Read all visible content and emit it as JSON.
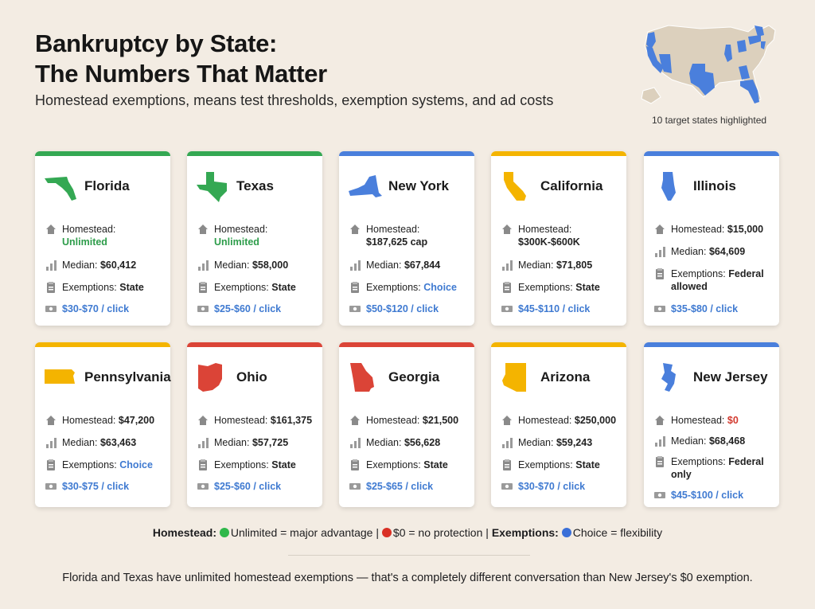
{
  "header": {
    "title_line1": "Bankruptcy by State:",
    "title_line2": "The Numbers That Matter",
    "subtitle": "Homestead exemptions, means test thresholds, exemption systems, and ad costs"
  },
  "map": {
    "caption": "10 target states highlighted"
  },
  "colors": {
    "green": "#34a853",
    "blue": "#4a7fdc",
    "yellow": "#f4b400",
    "red": "#db4437"
  },
  "labels": {
    "homestead": "Homestead:",
    "median": "Median:",
    "exemptions": "Exemptions:"
  },
  "cards": [
    {
      "state": "Florida",
      "color": "green",
      "homestead": "Unlimited",
      "median": "$60,412",
      "exemptions": "State",
      "cost": "$30-$70 / click"
    },
    {
      "state": "Texas",
      "color": "green",
      "homestead": "Unlimited",
      "median": "$58,000",
      "exemptions": "State",
      "cost": "$25-$60 / click"
    },
    {
      "state": "New York",
      "color": "blue",
      "homestead": "$187,625 cap",
      "median": "$67,844",
      "exemptions": "Choice",
      "cost": "$50-$120 / click"
    },
    {
      "state": "California",
      "color": "yellow",
      "homestead": "$300K-$600K",
      "median": "$71,805",
      "exemptions": "State",
      "cost": "$45-$110 / click"
    },
    {
      "state": "Illinois",
      "color": "blue",
      "homestead": "$15,000",
      "median": "$64,609",
      "exemptions": "Federal allowed",
      "cost": "$35-$80 / click"
    },
    {
      "state": "Pennsylvania",
      "color": "yellow",
      "homestead": "$47,200",
      "median": "$63,463",
      "exemptions": "Choice",
      "cost": "$30-$75 / click"
    },
    {
      "state": "Ohio",
      "color": "red",
      "homestead": "$161,375",
      "median": "$57,725",
      "exemptions": "State",
      "cost": "$25-$60 / click"
    },
    {
      "state": "Georgia",
      "color": "red",
      "homestead": "$21,500",
      "median": "$56,628",
      "exemptions": "State",
      "cost": "$25-$65 / click"
    },
    {
      "state": "Arizona",
      "color": "yellow",
      "homestead": "$250,000",
      "median": "$59,243",
      "exemptions": "State",
      "cost": "$30-$70 / click"
    },
    {
      "state": "New Jersey",
      "color": "blue",
      "homestead": "$0",
      "median": "$68,468",
      "exemptions": "Federal only",
      "cost": "$45-$100 / click"
    }
  ],
  "legend": {
    "homestead_label": "Homestead:",
    "unlimited_text": "Unlimited = major advantage",
    "zero_text": "$0 = no protection",
    "exemptions_label": "Exemptions:",
    "choice_text": "Choice = flexibility"
  },
  "footer": "Florida and Texas have unlimited homestead exemptions — that's a completely different conversation than New Jersey's $0 exemption."
}
